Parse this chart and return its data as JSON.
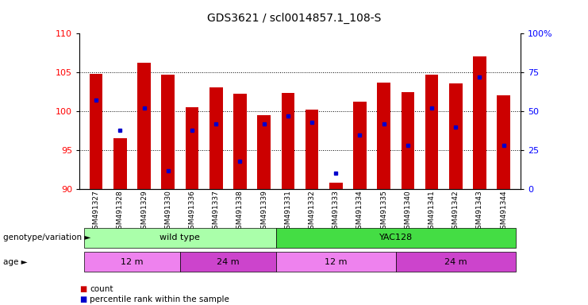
{
  "title": "GDS3621 / scl0014857.1_108-S",
  "samples": [
    "GSM491327",
    "GSM491328",
    "GSM491329",
    "GSM491330",
    "GSM491336",
    "GSM491337",
    "GSM491338",
    "GSM491339",
    "GSM491331",
    "GSM491332",
    "GSM491333",
    "GSM491334",
    "GSM491335",
    "GSM491340",
    "GSM491341",
    "GSM491342",
    "GSM491343",
    "GSM491344"
  ],
  "count_values": [
    104.8,
    96.5,
    106.2,
    104.7,
    100.5,
    103.1,
    102.3,
    99.5,
    102.4,
    100.2,
    90.8,
    101.2,
    103.7,
    102.5,
    104.7,
    103.6,
    107.1,
    102.1
  ],
  "percentile_values": [
    57,
    38,
    52,
    12,
    38,
    42,
    18,
    42,
    47,
    43,
    10,
    35,
    42,
    28,
    52,
    40,
    72,
    28
  ],
  "ylim_left": [
    90,
    110
  ],
  "ylim_right": [
    0,
    100
  ],
  "yticks_left": [
    90,
    95,
    100,
    105,
    110
  ],
  "yticks_right": [
    0,
    25,
    50,
    75,
    100
  ],
  "bar_color": "#cc0000",
  "dot_color": "#0000cc",
  "bar_base": 90,
  "genotype_groups": [
    {
      "label": "wild type",
      "start": 0,
      "end": 8,
      "color": "#aaffaa"
    },
    {
      "label": "YAC128",
      "start": 8,
      "end": 18,
      "color": "#44dd44"
    }
  ],
  "age_groups": [
    {
      "label": "12 m",
      "start": 0,
      "end": 4,
      "color": "#ee82ee"
    },
    {
      "label": "24 m",
      "start": 4,
      "end": 8,
      "color": "#cc44cc"
    },
    {
      "label": "12 m",
      "start": 8,
      "end": 13,
      "color": "#ee82ee"
    },
    {
      "label": "24 m",
      "start": 13,
      "end": 18,
      "color": "#cc44cc"
    }
  ],
  "legend_count_color": "#cc0000",
  "legend_percentile_color": "#0000cc",
  "row1_label": "genotype/variation",
  "row2_label": "age",
  "background_color": "#ffffff"
}
